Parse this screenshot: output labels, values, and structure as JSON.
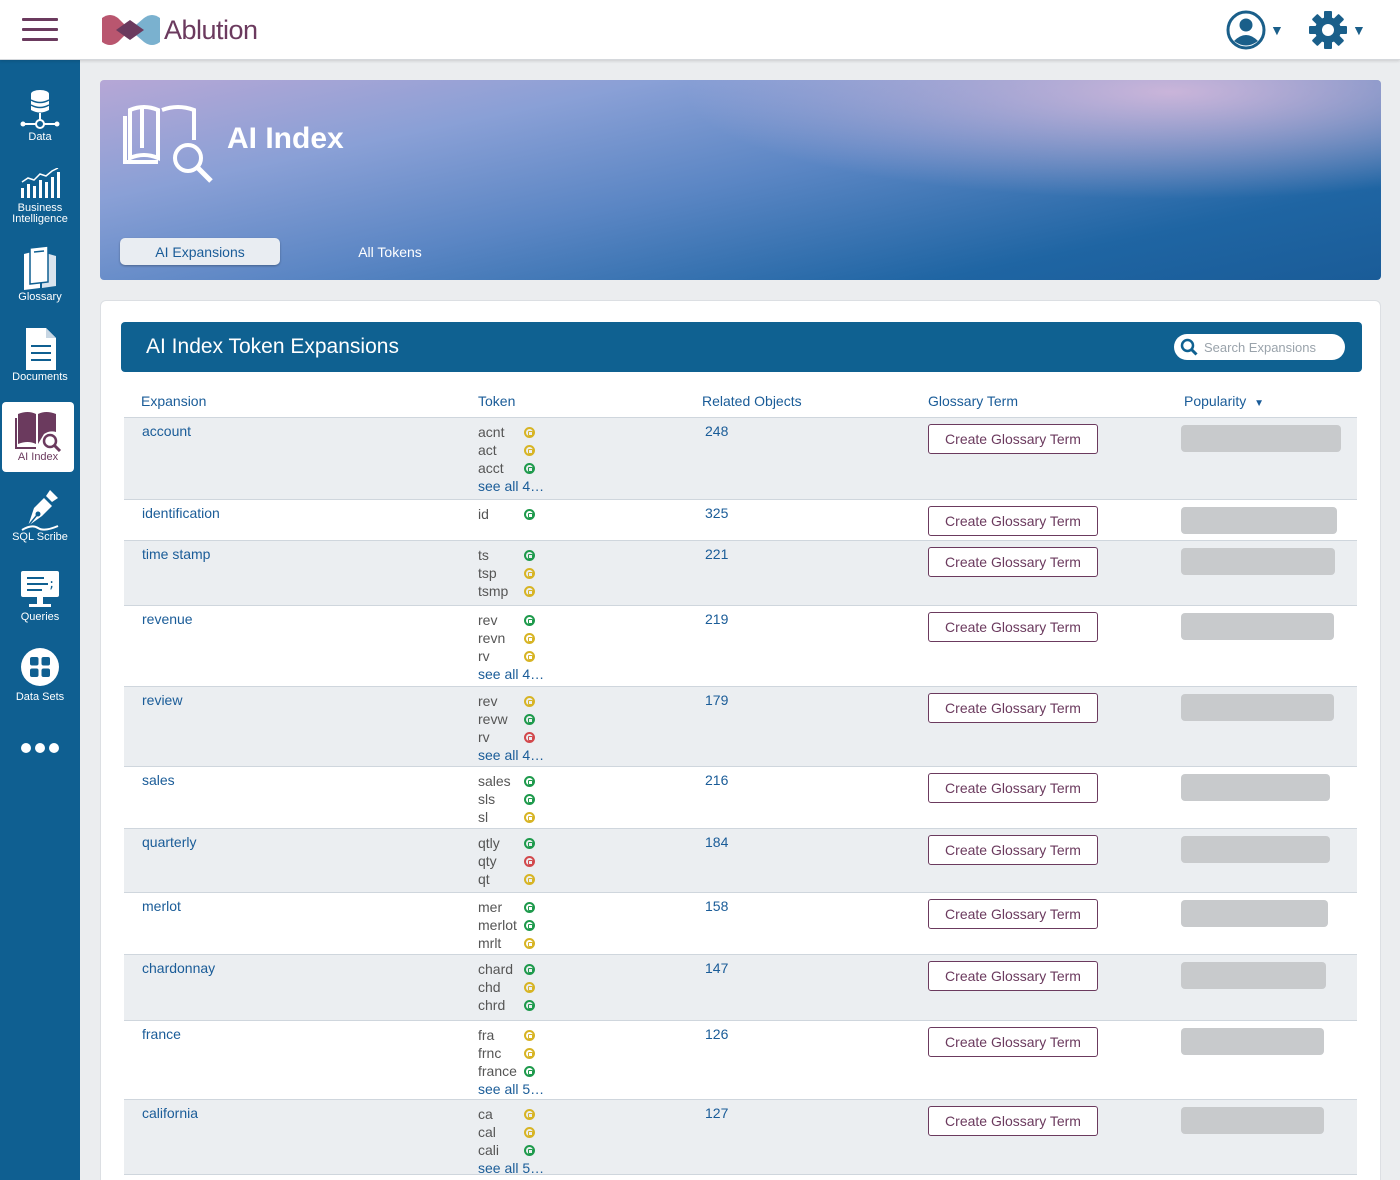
{
  "app": {
    "logo_text": "Ablution"
  },
  "sidebar": {
    "items": [
      {
        "label": "Data",
        "icon": "database-icon"
      },
      {
        "label": "Business Intelligence",
        "icon": "bar-chart-icon"
      },
      {
        "label": "Glossary",
        "icon": "books-icon"
      },
      {
        "label": "Documents",
        "icon": "document-icon"
      },
      {
        "label": "AI Index",
        "icon": "book-search-icon",
        "active": true
      },
      {
        "label": "SQL Scribe",
        "icon": "pen-icon"
      },
      {
        "label": "Queries",
        "icon": "monitor-icon"
      },
      {
        "label": "Data Sets",
        "icon": "grid-icon"
      },
      {
        "label": "",
        "icon": "more-icon"
      }
    ]
  },
  "hero": {
    "title": "AI Index",
    "tabs": [
      {
        "label": "AI Expansions",
        "active": true
      },
      {
        "label": "All Tokens",
        "active": false
      }
    ]
  },
  "panel": {
    "title": "AI Index Token Expansions",
    "search_placeholder": "Search Expansions",
    "columns": {
      "expansion": "Expansion",
      "token": "Token",
      "related": "Related Objects",
      "glossary": "Glossary Term",
      "popularity": "Popularity"
    },
    "button_label": "Create Glossary Term",
    "rows": [
      {
        "expansion": "account",
        "tokens": [
          [
            "acnt",
            "yellow"
          ],
          [
            "act",
            "yellow"
          ],
          [
            "acct",
            "green"
          ]
        ],
        "see_all": "see all 4…",
        "related": "248",
        "popularity": 0.86
      },
      {
        "expansion": "identification",
        "tokens": [
          [
            "id",
            "green"
          ]
        ],
        "see_all": "",
        "related": "325",
        "popularity": 0.84
      },
      {
        "expansion": "time stamp",
        "tokens": [
          [
            "ts",
            "green"
          ],
          [
            "tsp",
            "yellow"
          ],
          [
            "tsmp",
            "yellow"
          ]
        ],
        "see_all": "",
        "related": "221",
        "popularity": 0.83
      },
      {
        "expansion": "revenue",
        "tokens": [
          [
            "rev",
            "green"
          ],
          [
            "revn",
            "yellow"
          ],
          [
            "rv",
            "yellow"
          ]
        ],
        "see_all": "see all 4…",
        "related": "219",
        "popularity": 0.82
      },
      {
        "expansion": "review",
        "tokens": [
          [
            "rev",
            "yellow"
          ],
          [
            "revw",
            "green"
          ],
          [
            "rv",
            "red"
          ]
        ],
        "see_all": "see all 4…",
        "related": "179",
        "popularity": 0.82
      },
      {
        "expansion": "sales",
        "tokens": [
          [
            "sales",
            "green"
          ],
          [
            "sls",
            "green"
          ],
          [
            "sl",
            "yellow"
          ]
        ],
        "see_all": "",
        "related": "216",
        "popularity": 0.8
      },
      {
        "expansion": "quarterly",
        "tokens": [
          [
            "qtly",
            "green"
          ],
          [
            "qty",
            "red"
          ],
          [
            "qt",
            "yellow"
          ]
        ],
        "see_all": "",
        "related": "184",
        "popularity": 0.8
      },
      {
        "expansion": "merlot",
        "tokens": [
          [
            "mer",
            "green"
          ],
          [
            "merlot",
            "green"
          ],
          [
            "mrlt",
            "yellow"
          ]
        ],
        "see_all": "",
        "related": "158",
        "popularity": 0.79
      },
      {
        "expansion": "chardonnay",
        "tokens": [
          [
            "chard",
            "green"
          ],
          [
            "chd",
            "yellow"
          ],
          [
            "chrd",
            "green"
          ]
        ],
        "see_all": "",
        "related": "147",
        "popularity": 0.78
      },
      {
        "expansion": "france",
        "tokens": [
          [
            "fra",
            "yellow"
          ],
          [
            "frnc",
            "yellow"
          ],
          [
            "france",
            "green"
          ]
        ],
        "see_all": "see all 5…",
        "related": "126",
        "popularity": 0.77
      },
      {
        "expansion": "california",
        "tokens": [
          [
            "ca",
            "yellow"
          ],
          [
            "cal",
            "yellow"
          ],
          [
            "cali",
            "green"
          ]
        ],
        "see_all": "see all 5…",
        "related": "127",
        "popularity": 0.77
      }
    ]
  }
}
